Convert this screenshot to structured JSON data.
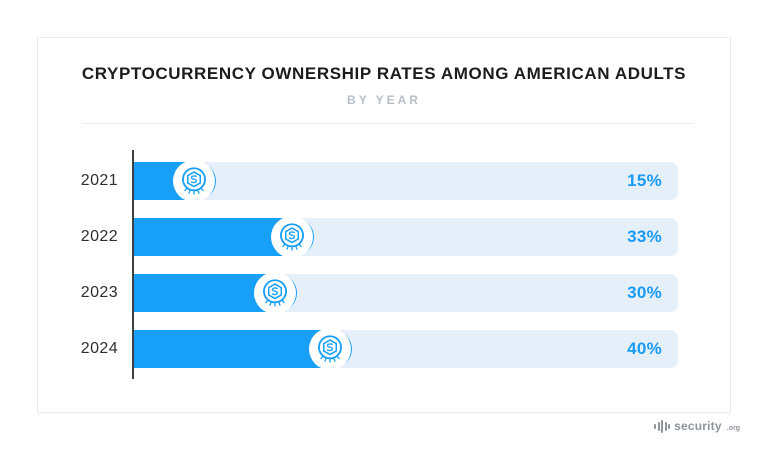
{
  "chart_data": {
    "type": "bar",
    "orientation": "horizontal",
    "title": "CRYPTOCURRENCY OWNERSHIP RATES AMONG AMERICAN ADULTS",
    "subtitle": "BY YEAR",
    "categories": [
      "2021",
      "2022",
      "2023",
      "2024"
    ],
    "values": [
      15,
      33,
      30,
      40
    ],
    "value_labels": [
      "15%",
      "33%",
      "30%",
      "40%"
    ],
    "xlim": [
      0,
      100
    ],
    "grid": false,
    "legend": false,
    "bar_color": "#18a0f8",
    "track_color": "#e5effa",
    "value_label_color": "#189bf5",
    "bar_end_icon": "crypto-coin-icon"
  },
  "footer": {
    "brand": "security",
    "brand_suffix": ".org"
  }
}
